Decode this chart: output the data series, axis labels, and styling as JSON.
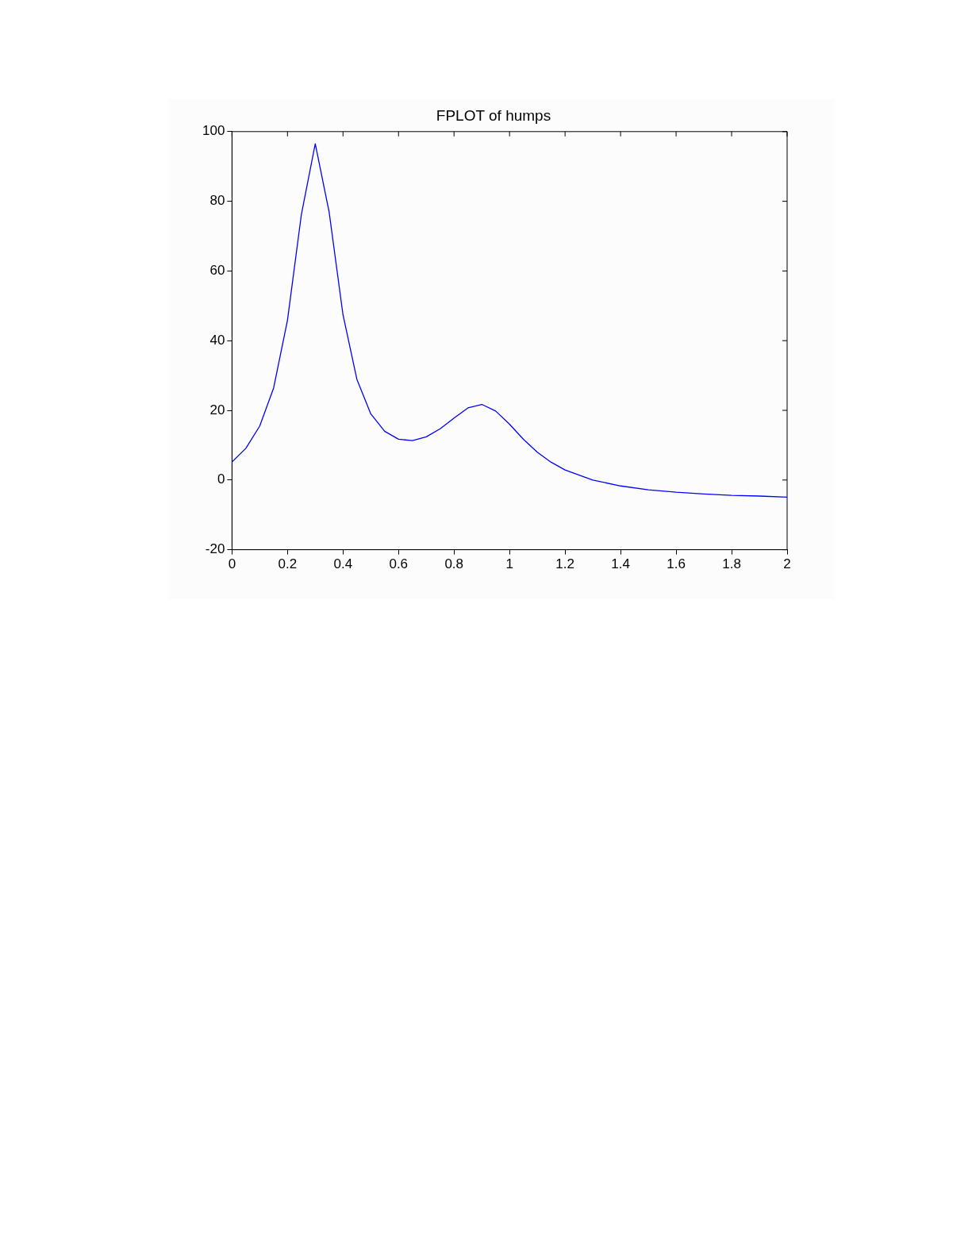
{
  "chart_data": {
    "type": "line",
    "title": "FPLOT of humps",
    "x": [
      0,
      0.05,
      0.1,
      0.15,
      0.2,
      0.25,
      0.3,
      0.35,
      0.4,
      0.45,
      0.5,
      0.55,
      0.6,
      0.65,
      0.7,
      0.75,
      0.8,
      0.85,
      0.9,
      0.95,
      1.0,
      1.05,
      1.1,
      1.15,
      1.2,
      1.3,
      1.4,
      1.5,
      1.6,
      1.7,
      1.8,
      1.9,
      2.0
    ],
    "series": [
      {
        "color": "#0000ff",
        "values": [
          5.2,
          9.1,
          15.5,
          26.4,
          45.9,
          76.2,
          96.5,
          76.9,
          47.4,
          28.9,
          19.0,
          14.0,
          11.7,
          11.3,
          12.4,
          14.7,
          17.8,
          20.7,
          21.7,
          19.8,
          16.0,
          11.7,
          8.0,
          5.1,
          2.9,
          0.0,
          -1.7,
          -2.8,
          -3.5,
          -4.0,
          -4.4,
          -4.6,
          -4.9
        ]
      }
    ],
    "xlim": [
      0,
      2
    ],
    "xticks": [
      0,
      0.2,
      0.4,
      0.6,
      0.8,
      1,
      1.2,
      1.4,
      1.6,
      1.8,
      2
    ],
    "ylim": [
      -20,
      100
    ],
    "yticks": [
      -20,
      0,
      20,
      40,
      60,
      80,
      100
    ],
    "grid": false,
    "legend": false,
    "marker": "none",
    "line_style": "solid"
  }
}
